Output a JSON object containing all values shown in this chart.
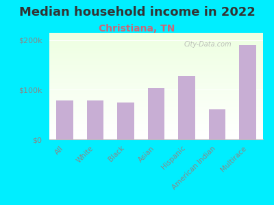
{
  "title": "Median household income in 2022",
  "subtitle": "Christiana, TN",
  "categories": [
    "All",
    "White",
    "Black",
    "Asian",
    "Hispanic",
    "American Indian",
    "Multirace"
  ],
  "values": [
    78000,
    78000,
    75000,
    103000,
    128000,
    60000,
    190000
  ],
  "bar_color": "#c8aed4",
  "title_fontsize": 13,
  "title_color": "#333333",
  "subtitle_fontsize": 10,
  "subtitle_color": "#cc6677",
  "background_color": "#00eeff",
  "ylabel_ticks": [
    "$0",
    "$100k",
    "$200k"
  ],
  "ytick_vals": [
    0,
    100000,
    200000
  ],
  "ylim": [
    0,
    215000
  ],
  "watermark": "City-Data.com",
  "tick_label_color": "#888888",
  "grid_color": "#dddddd"
}
